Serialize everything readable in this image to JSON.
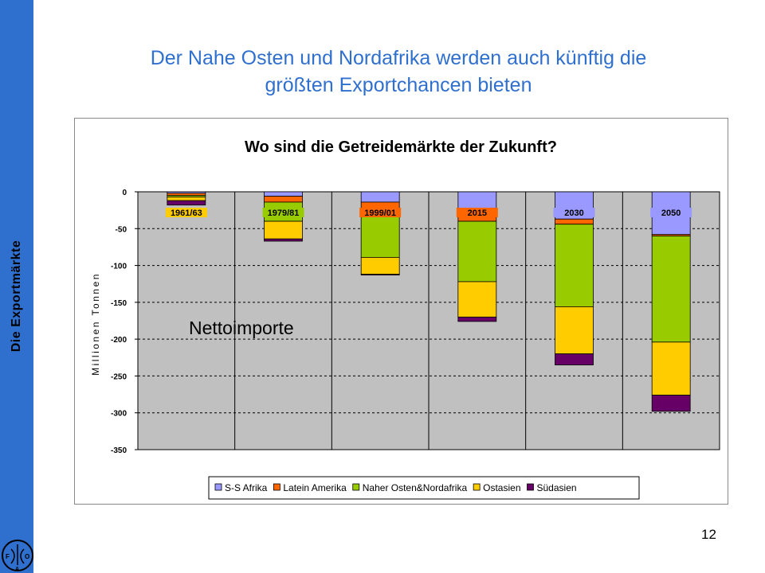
{
  "slide": {
    "title_line1": "Der Nahe Osten und Nordafrika werden auch künftig die",
    "title_line2": "größten Exportchancen  bieten",
    "sidebar_label": "Die Exportmärkte",
    "page_number": "12",
    "logo_letters": [
      "F",
      "A",
      "O"
    ],
    "colors": {
      "title": "#2f6fce",
      "sidebar": "#2f6fce"
    }
  },
  "chart_data": {
    "type": "bar",
    "stacked": true,
    "title": "Wo sind die Getreidemärkte der Zukunft?",
    "ylabel": "Millionen Tonnen",
    "annotation": "Nettoimporte",
    "ylim": [
      -350,
      0
    ],
    "yticks": [
      0,
      -50,
      -100,
      -150,
      -200,
      -250,
      -300,
      -350
    ],
    "grid": true,
    "legend_position": "bottom",
    "plot_background": "#c0c0c0",
    "categories": [
      "1961/63",
      "1979/81",
      "1999/01",
      "2015",
      "2030",
      "2050"
    ],
    "category_label_colors": [
      "#ffcc00",
      "#99cc00",
      "#ff6600",
      "#ff6600",
      "#9999ff",
      "#9999ff"
    ],
    "series": [
      {
        "name": "S-S Afrika",
        "color": "#9999ff",
        "values": [
          -2,
          -6,
          -14,
          -25,
          -37,
          -58
        ]
      },
      {
        "name": "Latein Amerika",
        "color": "#ff6600",
        "values": [
          -3,
          -8,
          -20,
          -15,
          -7,
          -2
        ]
      },
      {
        "name": "Naher Osten&Nordafrika",
        "color": "#99cc00",
        "values": [
          -2,
          -26,
          -55,
          -82,
          -112,
          -144
        ]
      },
      {
        "name": "Ostasien",
        "color": "#ffcc00",
        "values": [
          -5,
          -24,
          -23,
          -48,
          -64,
          -72
        ]
      },
      {
        "name": "Südasien",
        "color": "#660066",
        "values": [
          -6,
          -3,
          -1,
          -6,
          -15,
          -22
        ]
      }
    ]
  }
}
